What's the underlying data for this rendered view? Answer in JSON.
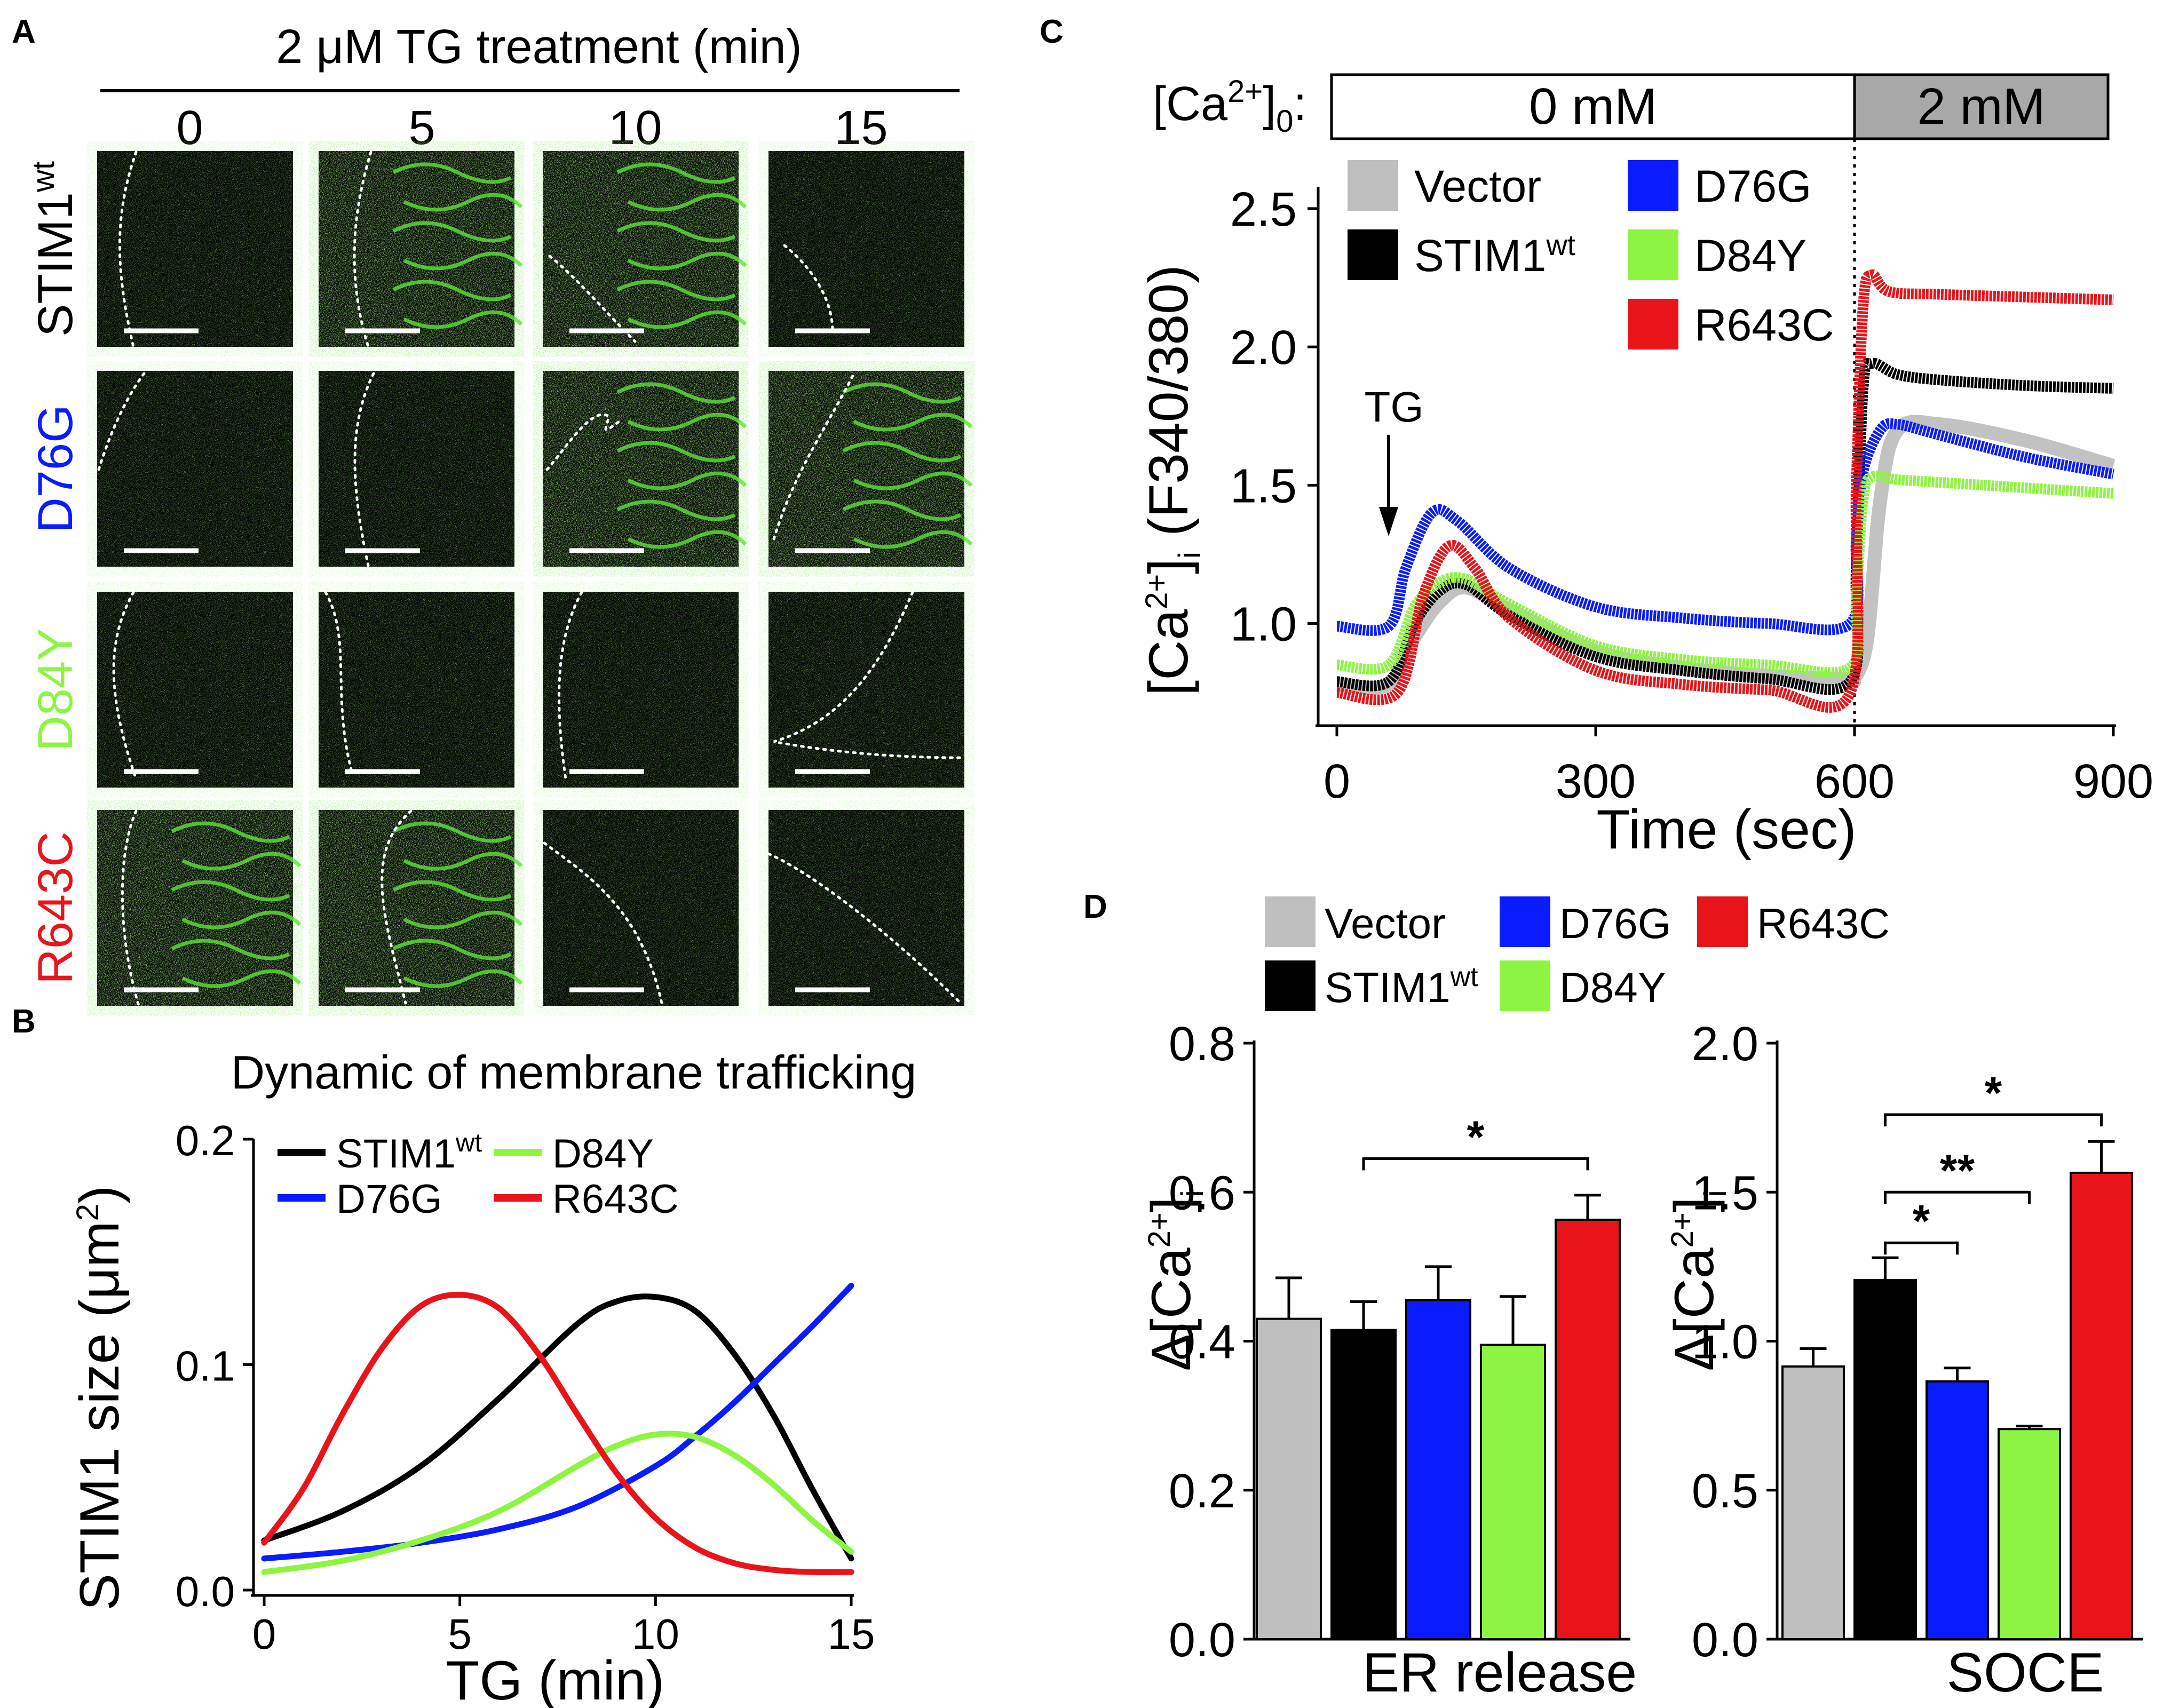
{
  "panels": {
    "a": "A",
    "b": "B",
    "c": "C",
    "d": "D"
  },
  "colors": {
    "vector": "#bfbfbf",
    "stim1wt": "#000000",
    "d76g": "#0a1cff",
    "d84y": "#8df542",
    "r643c": "#e8141a",
    "cell_bg": "#050805",
    "er_green": "#5fe23a"
  },
  "legend_labels": {
    "vector": "Vector",
    "stim1": "STIM1",
    "wt": "wt",
    "d76g": "D76G",
    "d84y": "D84Y",
    "r643c": "R643C"
  },
  "panel_a": {
    "header": "2 μM TG treatment (min)",
    "columns": [
      "0",
      "5",
      "10",
      "15"
    ],
    "rows": [
      {
        "label": "STIM1",
        "sup": "wt",
        "color": "#000000"
      },
      {
        "label": "D76G",
        "sup": "",
        "color": "#0a1cff"
      },
      {
        "label": "D84Y",
        "sup": "",
        "color": "#8df542"
      },
      {
        "label": "R643C",
        "sup": "",
        "color": "#e8141a"
      }
    ]
  },
  "chart_data": [
    {
      "id": "B",
      "type": "line",
      "title": "Dynamic of membrane trafficking",
      "xlabel": "TG (min)",
      "ylabel_main": "STIM1 size (μm",
      "ylabel_sup": "2",
      "ylabel_end": ")",
      "xlim": [
        0,
        15
      ],
      "ylim": [
        0,
        0.2
      ],
      "xticks": [
        "0",
        "5",
        "10",
        "15"
      ],
      "yticks": [
        "0.0",
        "0.1",
        "0.2"
      ],
      "series": [
        {
          "key": "stim1wt",
          "name": "STIM1wt",
          "x": [
            0,
            2,
            4,
            6,
            8,
            9,
            10,
            11,
            12,
            13,
            14,
            15
          ],
          "y": [
            0.022,
            0.035,
            0.055,
            0.085,
            0.118,
            0.128,
            0.13,
            0.124,
            0.105,
            0.078,
            0.045,
            0.014
          ]
        },
        {
          "key": "d76g",
          "name": "D76G",
          "x": [
            0,
            2,
            4,
            6,
            8,
            10,
            11,
            12,
            13,
            14,
            15
          ],
          "y": [
            0.014,
            0.017,
            0.021,
            0.027,
            0.037,
            0.055,
            0.068,
            0.083,
            0.1,
            0.117,
            0.135
          ]
        },
        {
          "key": "d84y",
          "name": "D84Y",
          "x": [
            0,
            2,
            4,
            6,
            8,
            9,
            10,
            11,
            12,
            13,
            14,
            15
          ],
          "y": [
            0.008,
            0.013,
            0.022,
            0.035,
            0.055,
            0.064,
            0.069,
            0.068,
            0.06,
            0.047,
            0.031,
            0.017
          ]
        },
        {
          "key": "r643c",
          "name": "R643C",
          "x": [
            0,
            1,
            2,
            3,
            4,
            5,
            6,
            7,
            8,
            9,
            10,
            11,
            12,
            13,
            14,
            15
          ],
          "y": [
            0.021,
            0.045,
            0.078,
            0.107,
            0.126,
            0.131,
            0.125,
            0.105,
            0.078,
            0.052,
            0.032,
            0.019,
            0.012,
            0.009,
            0.008,
            0.008
          ]
        }
      ]
    },
    {
      "id": "C",
      "type": "line",
      "ylabel_a": "[Ca",
      "ylabel_sup": "2+",
      "ylabel_b": "]",
      "ylabel_sub": "i",
      "ylabel_c": " (F340/380)",
      "xlabel": "Time (sec)",
      "xlim": [
        0,
        900
      ],
      "ylim": [
        0.65,
        2.55
      ],
      "xticks": [
        "0",
        "300",
        "600",
        "900"
      ],
      "yticks": [
        "1.0",
        "1.5",
        "2.0",
        "2.5"
      ],
      "annotation": "TG",
      "annotation_x": 60,
      "solution_bar": {
        "label_a": "[Ca",
        "label_sup": "2+",
        "label_b": "]",
        "label_sub": "0",
        "label_c": ":",
        "seg1": "0 mM",
        "seg2": "2 mM",
        "switch_x": 600
      },
      "series": [
        {
          "key": "vector",
          "name": "Vector",
          "x": [
            0,
            60,
            90,
            120,
            150,
            200,
            300,
            400,
            500,
            590,
            600,
            615,
            630,
            650,
            700,
            800,
            900
          ],
          "y": [
            0.78,
            0.78,
            0.95,
            1.08,
            1.13,
            1.05,
            0.9,
            0.84,
            0.81,
            0.8,
            0.8,
            0.95,
            1.45,
            1.7,
            1.72,
            1.66,
            1.57
          ]
        },
        {
          "key": "stim1wt",
          "name": "STIM1wt",
          "x": [
            0,
            60,
            90,
            120,
            150,
            200,
            300,
            400,
            500,
            595,
            602,
            610,
            620,
            650,
            700,
            800,
            900
          ],
          "y": [
            0.79,
            0.79,
            1.0,
            1.12,
            1.14,
            1.03,
            0.88,
            0.83,
            0.8,
            0.79,
            1.2,
            1.85,
            1.94,
            1.9,
            1.88,
            1.86,
            1.85
          ]
        },
        {
          "key": "d76g",
          "name": "D76G",
          "x": [
            0,
            60,
            80,
            110,
            140,
            200,
            300,
            400,
            500,
            595,
            602,
            610,
            630,
            650,
            700,
            800,
            900
          ],
          "y": [
            0.99,
            0.99,
            1.2,
            1.4,
            1.37,
            1.2,
            1.06,
            1.02,
            1.0,
            1.0,
            1.3,
            1.55,
            1.7,
            1.72,
            1.68,
            1.6,
            1.54
          ]
        },
        {
          "key": "d84y",
          "name": "D84Y",
          "x": [
            0,
            60,
            90,
            120,
            150,
            200,
            300,
            400,
            500,
            595,
            602,
            610,
            620,
            650,
            700,
            800,
            900
          ],
          "y": [
            0.85,
            0.85,
            1.06,
            1.15,
            1.16,
            1.07,
            0.92,
            0.87,
            0.85,
            0.84,
            1.1,
            1.45,
            1.53,
            1.52,
            1.51,
            1.49,
            1.47
          ]
        },
        {
          "key": "r643c",
          "name": "R643C",
          "x": [
            0,
            70,
            100,
            130,
            160,
            200,
            300,
            400,
            500,
            595,
            602,
            610,
            620,
            640,
            700,
            800,
            900
          ],
          "y": [
            0.75,
            0.75,
            1.1,
            1.28,
            1.2,
            1.02,
            0.83,
            0.78,
            0.76,
            0.75,
            1.5,
            2.15,
            2.26,
            2.2,
            2.19,
            2.18,
            2.17
          ]
        }
      ]
    },
    {
      "id": "D-left",
      "type": "bar",
      "xlabel": "ER release",
      "ylabel_a": "Δ[Ca",
      "ylabel_sup": "2+",
      "ylabel_b": "]",
      "ylabel_sub": "i",
      "ylim": [
        0,
        0.8
      ],
      "yticks": [
        "0.0",
        "0.2",
        "0.4",
        "0.6",
        "0.8"
      ],
      "categories": [
        "Vector",
        "STIM1wt",
        "D76G",
        "D84Y",
        "R643C"
      ],
      "values": [
        0.43,
        0.415,
        0.455,
        0.395,
        0.563
      ],
      "errors": [
        0.055,
        0.038,
        0.045,
        0.065,
        0.033
      ],
      "significance": [
        {
          "from": 1,
          "to": 4,
          "label": "*",
          "y": 0.645
        }
      ]
    },
    {
      "id": "D-right",
      "type": "bar",
      "xlabel": "SOCE",
      "ylabel_a": "Δ[Ca",
      "ylabel_sup": "2+",
      "ylabel_b": "]",
      "ylabel_sub": "i",
      "ylim": [
        0,
        2.0
      ],
      "yticks": [
        "0.0",
        "0.5",
        "1.0",
        "1.5",
        "2.0"
      ],
      "categories": [
        "Vector",
        "STIM1wt",
        "D76G",
        "D84Y",
        "R643C"
      ],
      "values": [
        0.915,
        1.205,
        0.865,
        0.705,
        1.565
      ],
      "errors": [
        0.06,
        0.075,
        0.045,
        0.01,
        0.105
      ],
      "significance": [
        {
          "from": 1,
          "to": 2,
          "label": "*",
          "y": 1.33
        },
        {
          "from": 1,
          "to": 3,
          "label": "**",
          "y": 1.5
        },
        {
          "from": 1,
          "to": 4,
          "label": "*",
          "y": 1.76
        }
      ]
    }
  ]
}
